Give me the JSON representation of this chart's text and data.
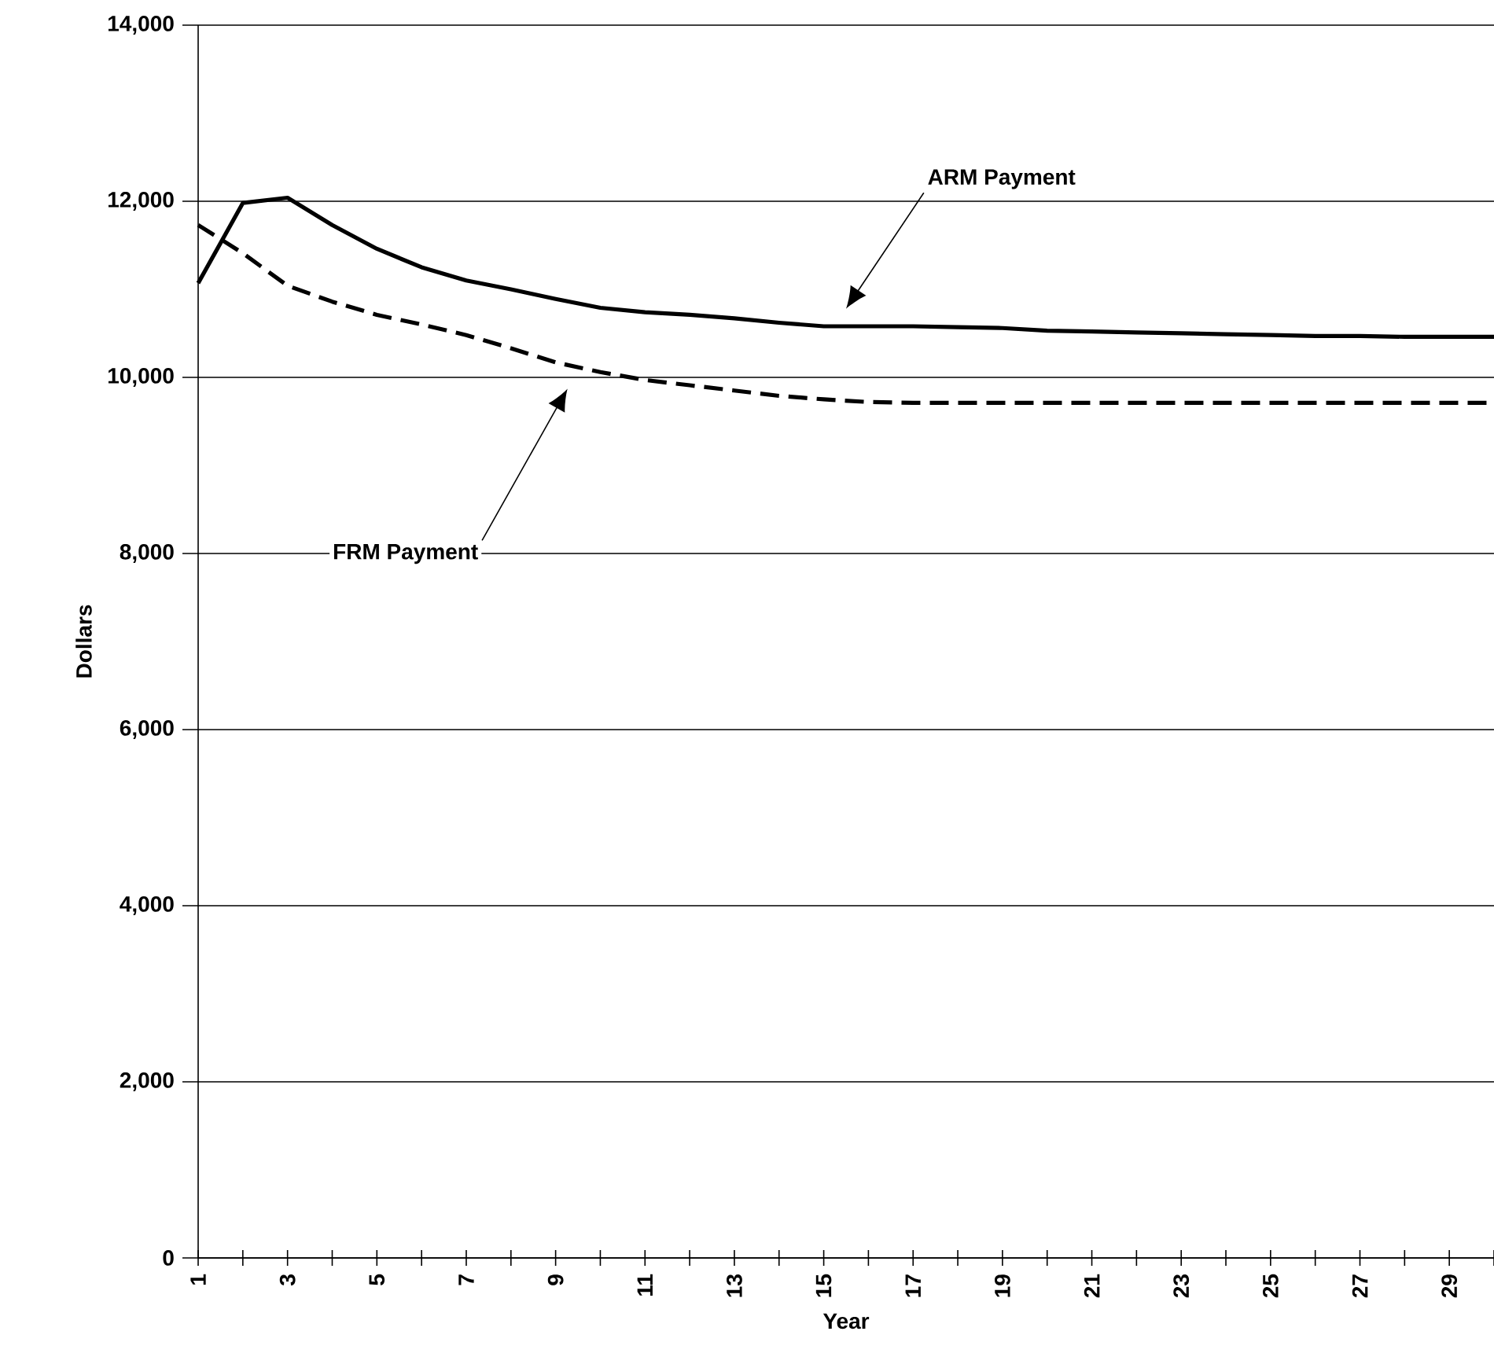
{
  "chart_data": {
    "type": "line",
    "xlabel": "Year",
    "ylabel": "Dollars",
    "categories": [
      "1",
      null,
      "3",
      null,
      "5",
      null,
      "7",
      null,
      "9",
      null,
      "11",
      null,
      "13",
      null,
      "15",
      null,
      "17",
      null,
      "19",
      null,
      "21",
      null,
      "23",
      null,
      "25",
      null,
      "27",
      null,
      "29",
      null
    ],
    "series": [
      {
        "color": "#000000",
        "line_style": "solid",
        "values": [
          11070,
          11980,
          12040,
          11730,
          11460,
          11250,
          11100,
          11000,
          10890,
          10790,
          10740,
          10710,
          10670,
          10620,
          10580,
          10580,
          10580,
          10570,
          10560,
          10530,
          10520,
          10510,
          10500,
          10490,
          10480,
          10470,
          10470,
          10460,
          10460,
          10460
        ]
      },
      {
        "color": "#000000",
        "line_style": "dashed",
        "values": [
          11730,
          11410,
          11040,
          10860,
          10710,
          10600,
          10480,
          10330,
          10170,
          10060,
          9970,
          9910,
          9850,
          9790,
          9750,
          9720,
          9710,
          9710,
          9710,
          9710,
          9710,
          9710,
          9710,
          9710,
          9710,
          9710,
          9710,
          9710,
          9710,
          9710
        ]
      }
    ],
    "ylim": [
      0,
      14000
    ],
    "yticks": [
      {
        "value": 0,
        "label": "0"
      },
      {
        "value": 2000,
        "label": "2,000"
      },
      {
        "value": 4000,
        "label": "4,000"
      },
      {
        "value": 6000,
        "label": "6,000"
      },
      {
        "value": 8000,
        "label": "8,000"
      },
      {
        "value": 10000,
        "label": "10,000"
      },
      {
        "value": 12000,
        "label": "12,000"
      },
      {
        "value": 14000,
        "label": "14,000"
      }
    ],
    "grid": "y",
    "marker": "none",
    "annotations": [
      "ARM Payment",
      "FRM Payment"
    ]
  }
}
